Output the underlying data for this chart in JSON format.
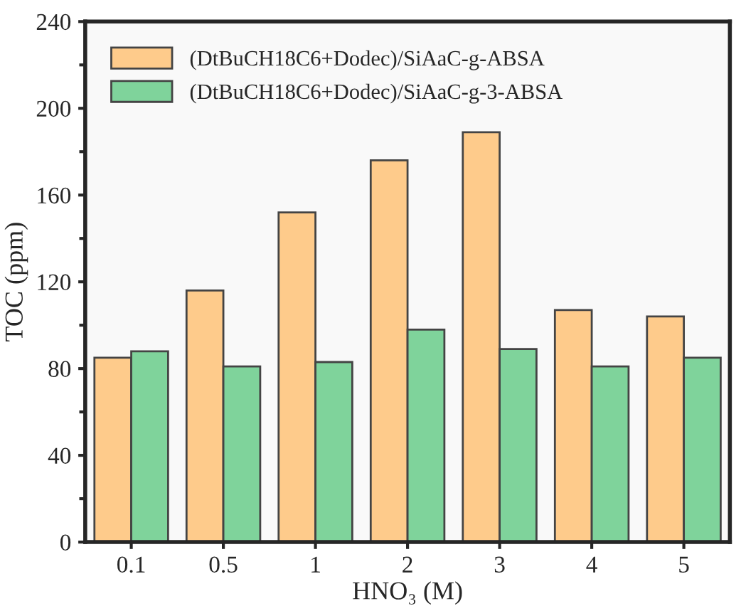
{
  "chart_data": {
    "type": "bar",
    "xlabel": "HNO₃ (M)",
    "ylabel": "TOC (ppm)",
    "categories": [
      "0.1",
      "0.5",
      "1",
      "2",
      "3",
      "4",
      "5"
    ],
    "series": [
      {
        "name": "(DtBuCH18C6+Dodec)/SiAaC-g-ABSA",
        "color": "#fecb8b",
        "values": [
          85,
          116,
          152,
          176,
          189,
          107,
          104
        ]
      },
      {
        "name": "(DtBuCH18C6+Dodec)/SiAaC-g-3-ABSA",
        "color": "#7fd39b",
        "values": [
          88,
          81,
          83,
          98,
          89,
          81,
          85
        ]
      }
    ],
    "ylim": [
      0,
      240
    ],
    "yticks": [
      0,
      40,
      80,
      120,
      160,
      200,
      240
    ],
    "grid": false,
    "legend": "top left"
  }
}
